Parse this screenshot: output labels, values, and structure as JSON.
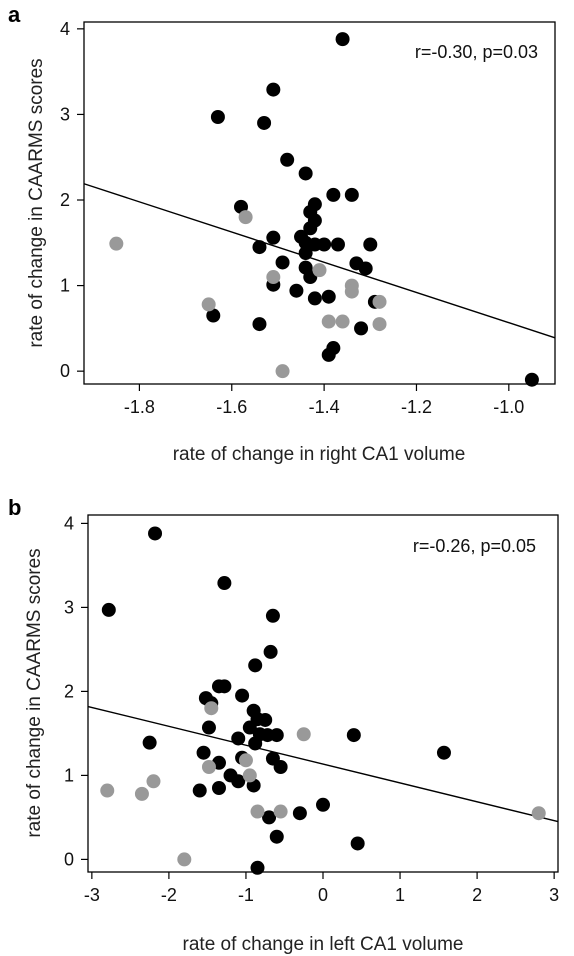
{
  "chart_data": [
    {
      "type": "scatter",
      "panel": "a",
      "annotation": "r=-0.30, p=0.03",
      "xlabel": "rate of change in right CA1 volume",
      "ylabel": "rate of change in CAARMS scores",
      "xlim": [
        -1.92,
        -0.9
      ],
      "ylim": [
        -0.15,
        4.08
      ],
      "xticks": [
        -1.8,
        -1.6,
        -1.4,
        -1.2,
        -1.0
      ],
      "xtick_labels": [
        "-1.8",
        "-1.6",
        "-1.4",
        "-1.2",
        "-1.0"
      ],
      "yticks": [
        0,
        1,
        2,
        3,
        4
      ],
      "ytick_labels": [
        "0",
        "1",
        "2",
        "3",
        "4"
      ],
      "colors": {
        "black": "#000000",
        "gray": "#999999",
        "line": "#000000"
      },
      "series": [
        {
          "color": "black",
          "points": [
            [
              -1.36,
              3.88
            ],
            [
              -1.51,
              3.29
            ],
            [
              -1.63,
              2.97
            ],
            [
              -1.53,
              2.9
            ],
            [
              -1.48,
              2.47
            ],
            [
              -1.44,
              2.31
            ],
            [
              -1.38,
              2.06
            ],
            [
              -1.34,
              2.06
            ],
            [
              -1.58,
              1.92
            ],
            [
              -1.42,
              1.95
            ],
            [
              -1.43,
              1.86
            ],
            [
              -1.42,
              1.76
            ],
            [
              -1.43,
              1.67
            ],
            [
              -1.45,
              1.57
            ],
            [
              -1.51,
              1.56
            ],
            [
              -1.44,
              1.5
            ],
            [
              -1.42,
              1.48
            ],
            [
              -1.4,
              1.48
            ],
            [
              -1.37,
              1.48
            ],
            [
              -1.3,
              1.48
            ],
            [
              -1.54,
              1.45
            ],
            [
              -1.44,
              1.38
            ],
            [
              -1.33,
              1.26
            ],
            [
              -1.49,
              1.27
            ],
            [
              -1.44,
              1.21
            ],
            [
              -1.31,
              1.2
            ],
            [
              -1.43,
              1.1
            ],
            [
              -1.51,
              1.01
            ],
            [
              -1.46,
              0.94
            ],
            [
              -1.39,
              0.87
            ],
            [
              -1.42,
              0.85
            ],
            [
              -1.29,
              0.81
            ],
            [
              -1.64,
              0.65
            ],
            [
              -1.54,
              0.55
            ],
            [
              -1.32,
              0.5
            ],
            [
              -1.38,
              0.27
            ],
            [
              -1.39,
              0.19
            ],
            [
              -0.95,
              -0.1
            ]
          ]
        },
        {
          "color": "gray",
          "points": [
            [
              -1.85,
              1.49
            ],
            [
              -1.57,
              1.8
            ],
            [
              -1.51,
              1.1
            ],
            [
              -1.41,
              1.18
            ],
            [
              -1.34,
              1.0
            ],
            [
              -1.34,
              0.93
            ],
            [
              -1.65,
              0.78
            ],
            [
              -1.28,
              0.81
            ],
            [
              -1.28,
              0.55
            ],
            [
              -1.39,
              0.58
            ],
            [
              -1.36,
              0.58
            ],
            [
              -1.49,
              0.0
            ]
          ]
        }
      ],
      "fit_line": {
        "x": [
          -1.92,
          -0.9
        ],
        "y": [
          2.19,
          0.39
        ]
      }
    },
    {
      "type": "scatter",
      "panel": "b",
      "annotation": "r=-0.26, p=0.05",
      "xlabel": "rate of change in left CA1 volume",
      "ylabel": "rate of change in CAARMS scores",
      "xlim": [
        -3.05,
        3.05
      ],
      "ylim": [
        -0.15,
        4.1
      ],
      "xticks": [
        -3,
        -2,
        -1,
        0,
        1,
        2,
        3
      ],
      "xtick_labels": [
        "-3",
        "-2",
        "-1",
        "0",
        "1",
        "2",
        "3"
      ],
      "yticks": [
        0,
        1,
        2,
        3,
        4
      ],
      "ytick_labels": [
        "0",
        "1",
        "2",
        "3",
        "4"
      ],
      "colors": {
        "black": "#000000",
        "gray": "#999999",
        "line": "#000000"
      },
      "series": [
        {
          "color": "black",
          "points": [
            [
              -2.18,
              3.88
            ],
            [
              -2.78,
              2.97
            ],
            [
              -1.28,
              3.29
            ],
            [
              -0.65,
              2.9
            ],
            [
              -0.68,
              2.47
            ],
            [
              -0.88,
              2.31
            ],
            [
              -1.28,
              2.06
            ],
            [
              -1.35,
              2.06
            ],
            [
              -1.52,
              1.92
            ],
            [
              -1.45,
              1.86
            ],
            [
              -1.05,
              1.95
            ],
            [
              -0.9,
              1.77
            ],
            [
              -0.85,
              1.67
            ],
            [
              -0.75,
              1.66
            ],
            [
              -0.95,
              1.57
            ],
            [
              -1.48,
              1.57
            ],
            [
              -1.1,
              1.44
            ],
            [
              -0.82,
              1.49
            ],
            [
              -0.72,
              1.48
            ],
            [
              -0.6,
              1.48
            ],
            [
              0.4,
              1.48
            ],
            [
              -2.25,
              1.39
            ],
            [
              -0.88,
              1.38
            ],
            [
              1.57,
              1.27
            ],
            [
              -1.55,
              1.27
            ],
            [
              -1.05,
              1.21
            ],
            [
              -0.65,
              1.2
            ],
            [
              -1.35,
              1.15
            ],
            [
              -0.55,
              1.1
            ],
            [
              -1.2,
              1.0
            ],
            [
              -1.1,
              0.93
            ],
            [
              -0.9,
              0.88
            ],
            [
              -1.35,
              0.85
            ],
            [
              -1.6,
              0.82
            ],
            [
              0.0,
              0.65
            ],
            [
              -0.3,
              0.55
            ],
            [
              -0.7,
              0.5
            ],
            [
              -0.6,
              0.27
            ],
            [
              0.45,
              0.19
            ],
            [
              -0.85,
              -0.1
            ]
          ]
        },
        {
          "color": "gray",
          "points": [
            [
              -2.8,
              0.82
            ],
            [
              -2.35,
              0.78
            ],
            [
              -2.2,
              0.93
            ],
            [
              -1.45,
              1.8
            ],
            [
              -1.48,
              1.1
            ],
            [
              -1.0,
              1.18
            ],
            [
              -0.95,
              1.0
            ],
            [
              -0.25,
              1.49
            ],
            [
              -0.85,
              0.57
            ],
            [
              -0.55,
              0.57
            ],
            [
              -1.8,
              0.0
            ],
            [
              2.8,
              0.55
            ]
          ]
        }
      ],
      "fit_line": {
        "x": [
          -3.05,
          3.05
        ],
        "y": [
          1.82,
          0.45
        ]
      }
    }
  ]
}
